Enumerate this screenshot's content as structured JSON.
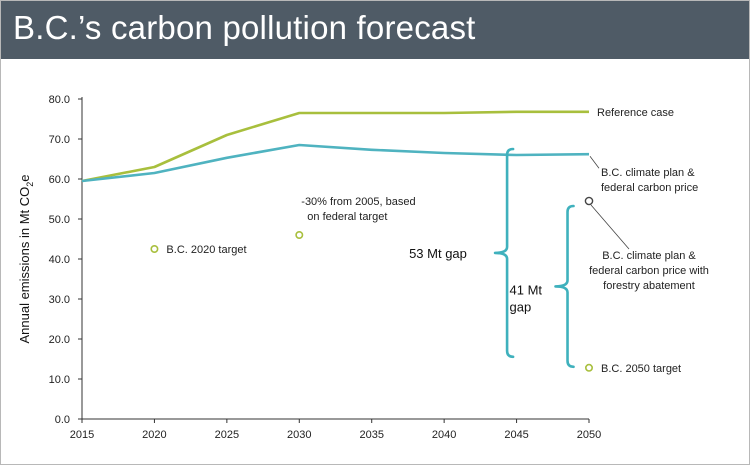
{
  "header": {
    "title": "B.C.’s carbon pollution forecast"
  },
  "colors": {
    "reference": "#a8bf3d",
    "plan": "#4fb3c0",
    "bracket": "#3fb1bd",
    "header_bg": "#4f5b66"
  },
  "chart_data": {
    "type": "line",
    "title": "B.C.’s carbon pollution forecast",
    "ylabel": "Annual emissions in Mt CO2e",
    "xlim": [
      2015,
      2050
    ],
    "ylim": [
      0,
      80
    ],
    "xticks": [
      "2015",
      "2020",
      "2025",
      "2030",
      "2035",
      "2040",
      "2045",
      "2050"
    ],
    "yticks": [
      "0.0",
      "10.0",
      "20.0",
      "30.0",
      "40.0",
      "50.0",
      "60.0",
      "70.0",
      "80.0"
    ],
    "series": [
      {
        "name": "Reference case",
        "x": [
          2015,
          2020,
          2025,
          2030,
          2035,
          2040,
          2045,
          2050
        ],
        "values": [
          59.5,
          63.0,
          71.0,
          76.5,
          76.5,
          76.5,
          76.8,
          76.8
        ]
      },
      {
        "name": "B.C. climate plan & federal carbon price",
        "x": [
          2015,
          2020,
          2025,
          2030,
          2035,
          2040,
          2045,
          2050
        ],
        "values": [
          59.5,
          61.5,
          65.3,
          68.5,
          67.3,
          66.5,
          66.0,
          66.2
        ]
      }
    ],
    "points": [
      {
        "label": "B.C. 2020 target",
        "x": 2020,
        "y": 42.5
      },
      {
        "label_lines": [
          "-30% from 2005, based",
          "on federal target"
        ],
        "x": 2030,
        "y": 46.0
      },
      {
        "label": "B.C. 2050 target",
        "x": 2050,
        "y": 12.8
      },
      {
        "label_lines": [
          "B.C. climate plan &",
          "federal carbon price with",
          "forestry abatement"
        ],
        "x": 2050,
        "y": 54.5
      }
    ],
    "gaps": [
      {
        "label": "53 Mt gap",
        "from": 66.0,
        "to": 12.8,
        "x": 2044
      },
      {
        "label_lines": [
          "41 Mt",
          "gap"
        ],
        "from": 54.0,
        "to": 12.8,
        "x": 2049
      }
    ],
    "series_label_lines": {
      "plan": [
        "B.C. climate plan &",
        "federal carbon price"
      ]
    },
    "grid": false
  }
}
